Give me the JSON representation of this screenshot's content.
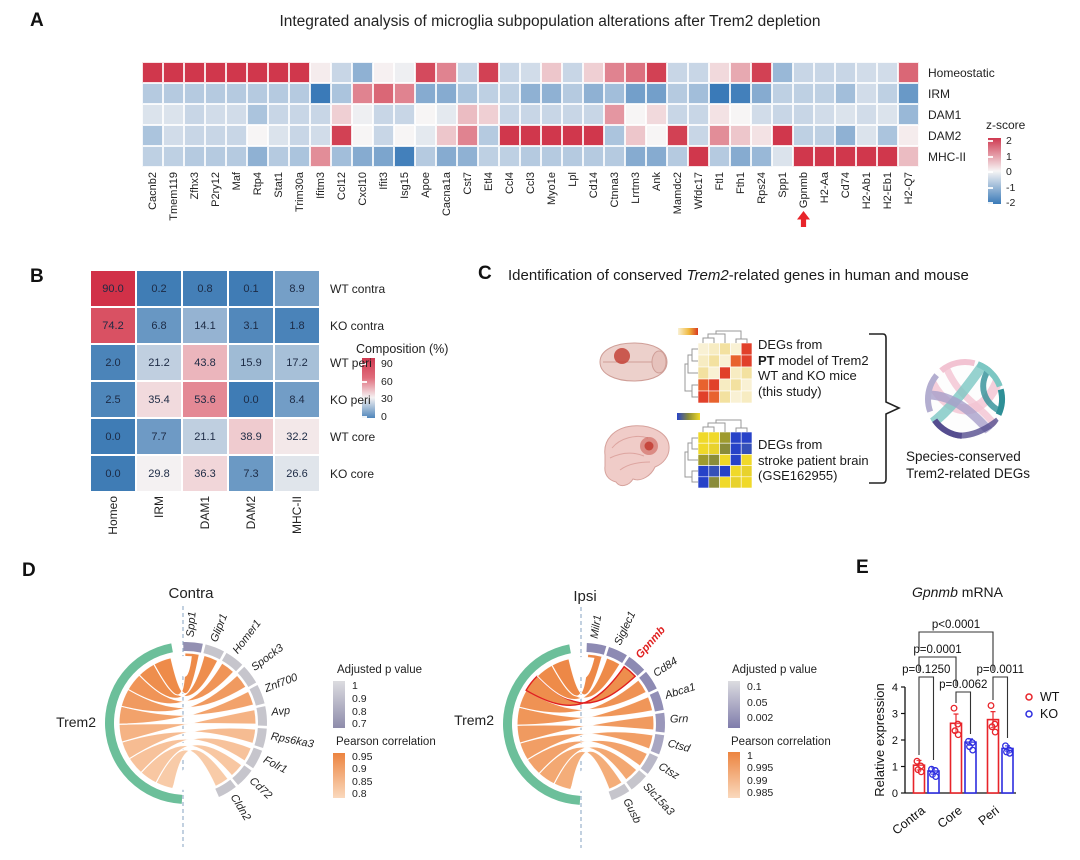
{
  "panel_labels": {
    "a": "A",
    "b": "B",
    "c": "C",
    "d": "D",
    "e": "E"
  },
  "chart_data": [
    {
      "id": "A",
      "type": "heatmap",
      "title": "Integrated analysis of microglia subpopulation alterations after Trem2 depletion",
      "rows": [
        "Homeostatic",
        "IRM",
        "DAM1",
        "DAM2",
        "MHC-II"
      ],
      "categories": [
        "Cacnb2",
        "Tmem119",
        "Zfhx3",
        "P2ry12",
        "Maf",
        "Rtp4",
        "Stat1",
        "Trim30a",
        "Ifitm3",
        "Ccl12",
        "Cxcl10",
        "Ifit3",
        "Isg15",
        "Apoe",
        "Cacna1a",
        "Cst7",
        "Etl4",
        "Ccl4",
        "Ccl3",
        "Myo1e",
        "Lpl",
        "Cd14",
        "Ctnna3",
        "Lrrtm3",
        "Ank",
        "Mamdc2",
        "Wfdc17",
        "Ftl1",
        "Fth1",
        "Rps24",
        "Spp1",
        "Gpnmb",
        "H2-Aa",
        "Cd74",
        "H2-Ab1",
        "H2-Eb1",
        "H2-Q7"
      ],
      "values": [
        [
          2,
          2,
          2,
          2,
          2,
          2,
          2,
          2,
          0.1,
          -0.5,
          -1.1,
          0.05,
          -0.1,
          1.8,
          1.2,
          -0.5,
          1.9,
          -0.5,
          -0.4,
          0.5,
          -0.5,
          0.4,
          1.2,
          1.4,
          1.9,
          -0.5,
          -0.5,
          0.3,
          0.8,
          1.9,
          -1,
          -0.5,
          -0.5,
          -0.5,
          -0.4,
          -0.4,
          1.5
        ],
        [
          -0.7,
          -0.7,
          -0.7,
          -0.7,
          -0.7,
          -0.7,
          -0.7,
          -0.7,
          -2,
          -0.8,
          1.2,
          1.5,
          1.2,
          -1.2,
          -1.2,
          -0.8,
          -0.6,
          -0.6,
          -1.1,
          -1.1,
          -0.7,
          -1.1,
          -0.9,
          -1.4,
          -1.4,
          -0.7,
          -0.9,
          -2,
          -1.9,
          -1.2,
          -0.6,
          -0.6,
          -0.6,
          -0.9,
          -0.4,
          -0.6,
          -1.5
        ],
        [
          -0.3,
          -0.3,
          -0.5,
          -0.4,
          -0.4,
          -0.8,
          -0.5,
          -0.5,
          -0.5,
          0.4,
          -0.1,
          -0.5,
          -0.5,
          0,
          -0.2,
          0.6,
          0.4,
          -0.5,
          -0.5,
          -0.5,
          -0.5,
          -0.5,
          1,
          0,
          0.3,
          -0.5,
          -0.5,
          0.2,
          0,
          -0.4,
          -0.5,
          -0.5,
          -0.4,
          -0.3,
          -0.4,
          -0.3,
          -1
        ],
        [
          -0.8,
          -0.4,
          -0.5,
          -0.5,
          -0.5,
          0,
          -0.3,
          -0.5,
          -0.4,
          1.9,
          0,
          -0.5,
          0,
          -0.2,
          0.5,
          1.2,
          -0.7,
          2,
          2,
          2,
          2,
          2,
          -0.8,
          0.5,
          0,
          1.9,
          -0.5,
          1.1,
          0.5,
          0.2,
          2,
          -0.6,
          -0.6,
          -1.1,
          -0.3,
          -0.8,
          0.1
        ],
        [
          -0.6,
          -0.6,
          -0.7,
          -0.7,
          -0.7,
          -1.1,
          -0.7,
          -0.8,
          1.1,
          -0.9,
          -1.2,
          -1.3,
          -1.9,
          -0.7,
          -1.2,
          -1.1,
          -0.6,
          -0.6,
          -0.7,
          -0.7,
          -0.7,
          -0.7,
          -0.7,
          -1.2,
          -1.2,
          -0.7,
          2,
          -0.7,
          -1.2,
          -1,
          -0.3,
          2,
          2,
          2,
          2,
          2,
          0.6
        ]
      ],
      "legend_title": "z-score",
      "legend_ticks": [
        "2",
        "1",
        "0",
        "-1",
        "-2"
      ],
      "highlighted_gene": "Gpnmb",
      "arrow_color": "#e8242a"
    },
    {
      "id": "B",
      "type": "heatmap",
      "rows": [
        "WT contra",
        "KO contra",
        "WT peri",
        "KO peri",
        "WT core",
        "KO core"
      ],
      "categories": [
        "Homeo",
        "IRM",
        "DAM1",
        "DAM2",
        "MHC-II"
      ],
      "values": [
        [
          "90.0",
          "0.2",
          "0.8",
          "0.1",
          "8.9"
        ],
        [
          "74.2",
          "6.8",
          "14.1",
          "3.1",
          "1.8"
        ],
        [
          "2.0",
          "21.2",
          "43.8",
          "15.9",
          "17.2"
        ],
        [
          "2.5",
          "35.4",
          "53.6",
          "0.0",
          "8.4"
        ],
        [
          "0.0",
          "7.7",
          "21.1",
          "38.9",
          "32.2"
        ],
        [
          "0.0",
          "29.8",
          "36.3",
          "7.3",
          "26.6"
        ]
      ],
      "legend_title": "Composition (%)",
      "legend_ticks": [
        "90",
        "60",
        "30",
        "0"
      ]
    },
    {
      "id": "D-contra",
      "type": "chord",
      "title": "Contra",
      "source": "Trem2",
      "source_arc_color": "#6cbf9a",
      "targets": [
        {
          "gene": "Spp1",
          "seg": "#9390b2",
          "fill": "#ee8b49"
        },
        {
          "gene": "Glipr1",
          "seg": "#c6c5cc",
          "fill": "#ee8e4d"
        },
        {
          "gene": "Homer1",
          "seg": "#c6c5cc",
          "fill": "#f09457"
        },
        {
          "gene": "Spock3",
          "seg": "#c6c5cc",
          "fill": "#f09a60"
        },
        {
          "gene": "Znf700",
          "seg": "#c6c5cc",
          "fill": "#f2a26b"
        },
        {
          "gene": "Avp",
          "seg": "#c6c5cc",
          "fill": "#f5b384"
        },
        {
          "gene": "Rps6ka3",
          "seg": "#c6c5cc",
          "fill": "#f6bc92"
        },
        {
          "gene": "Folr1",
          "seg": "#c6c5cc",
          "fill": "#f7c29b"
        },
        {
          "gene": "Cd72",
          "seg": "#c6c5cc",
          "fill": "#f8c7a2"
        },
        {
          "gene": "Cldn2",
          "seg": "#c6c5cc",
          "fill": "#f8cba8"
        }
      ],
      "legend_p_title": "Adjusted p value",
      "legend_p_ticks": [
        "1",
        "0.9",
        "0.8",
        "0.7"
      ],
      "legend_r_title": "Pearson correlation",
      "legend_r_ticks": [
        "0.95",
        "0.9",
        "0.85",
        "0.8"
      ]
    },
    {
      "id": "D-ipsi",
      "type": "chord",
      "title": "Ipsi",
      "source": "Trem2",
      "source_arc_color": "#6cbf9a",
      "targets": [
        {
          "gene": "Milr1",
          "seg": "#8d8ab3",
          "fill": "#ed8847"
        },
        {
          "gene": "Siglec1",
          "seg": "#8d8ab3",
          "fill": "#ee8b49"
        },
        {
          "gene": "Gpnmb",
          "seg": "#8d8ab3",
          "fill": "#ee8e4d",
          "highlight": "#e02020"
        },
        {
          "gene": "Cd84",
          "seg": "#8d8ab3",
          "fill": "#ef9254"
        },
        {
          "gene": "Abca1",
          "seg": "#918eb6",
          "fill": "#f09659"
        },
        {
          "gene": "Grn",
          "seg": "#9a97bb",
          "fill": "#f09a60"
        },
        {
          "gene": "Ctsd",
          "seg": "#a8a6c2",
          "fill": "#f19e65"
        },
        {
          "gene": "Ctsz",
          "seg": "#b9b8c8",
          "fill": "#f2a26b"
        },
        {
          "gene": "Slc15a3",
          "seg": "#c6c5cc",
          "fill": "#f3a872"
        },
        {
          "gene": "Gusb",
          "seg": "#c6c5cc",
          "fill": "#f4ad79"
        }
      ],
      "legend_p_title": "Adjusted p value",
      "legend_p_ticks": [
        "0.1",
        "0.05",
        "0.002"
      ],
      "legend_r_title": "Pearson correlation",
      "legend_r_ticks": [
        "1",
        "0.995",
        "0.99",
        "0.985"
      ]
    },
    {
      "id": "E",
      "type": "bar",
      "title_italic": "Gpnmb",
      "title_post": " mRNA",
      "ylabel": "Relative expression",
      "ylim": [
        0,
        4
      ],
      "yticks": [
        "0",
        "1",
        "2",
        "3",
        "4"
      ],
      "categories": [
        "Contra",
        "Core",
        "Peri"
      ],
      "series": [
        {
          "name": "WT",
          "color": "#e8242a",
          "values": [
            1.05,
            2.63,
            2.77
          ],
          "points": [
            [
              1.2,
              1.02,
              0.88,
              0.8
            ],
            [
              3.2,
              2.6,
              2.35,
              2.2
            ],
            [
              3.3,
              2.6,
              2.5,
              2.3
            ]
          ],
          "err": [
            0.18,
            0.35,
            0.3
          ]
        },
        {
          "name": "KO",
          "color": "#2d2de0",
          "values": [
            0.83,
            1.92,
            1.68
          ],
          "points": [
            [
              0.9,
              0.85,
              0.7,
              0.62
            ],
            [
              1.95,
              1.9,
              1.75,
              1.62
            ],
            [
              1.78,
              1.62,
              1.55,
              1.5
            ]
          ],
          "err": [
            0.12,
            0.12,
            0.1
          ]
        }
      ],
      "comparisons": [
        {
          "label": "p=0.1250",
          "from": [
            0,
            0
          ],
          "to": [
            0,
            1
          ]
        },
        {
          "label": "p=0.0062",
          "from": [
            1,
            0
          ],
          "to": [
            1,
            1
          ]
        },
        {
          "label": "p=0.0011",
          "from": [
            2,
            0
          ],
          "to": [
            2,
            1
          ]
        },
        {
          "label": "p=0.0001",
          "from": [
            0,
            0
          ],
          "to": [
            1,
            0
          ]
        },
        {
          "label": "p<0.0001",
          "from": [
            0,
            0
          ],
          "to": [
            2,
            0
          ]
        }
      ]
    }
  ],
  "panelC": {
    "title_pre": "Identification of conserved ",
    "title_italic": "Trem2",
    "title_post": "-related genes in human and mouse",
    "box1_line1": "DEGs from",
    "box1_line2_bold": "PT",
    "box1_line2_rest": " model of Trem2",
    "box1_line3": "WT and KO mice",
    "box1_line4": "(this study)",
    "box2_line1": "DEGs from",
    "box2_line2": "stroke patient brain",
    "box2_line3": "(GSE162955)",
    "result_line1": "Species-conserved",
    "result_line2": "Trem2-related DEGs",
    "hm1_colors": [
      [
        "#f9f1d4",
        "#f7ecc2",
        "#f3e1a0",
        "#f9f1d4",
        "#e1402a"
      ],
      [
        "#f7ecc2",
        "#f3e1a0",
        "#f9f1d4",
        "#e8622e",
        "#e1402a"
      ],
      [
        "#f3e1a0",
        "#f9f1d4",
        "#e1402a",
        "#f7ecc2",
        "#f3e1a0"
      ],
      [
        "#e8622e",
        "#e1402a",
        "#f7ecc2",
        "#f3e1a0",
        "#f9f1d4"
      ],
      [
        "#e1402a",
        "#e8622e",
        "#f3e1a0",
        "#f9f1d4",
        "#f7ecc2"
      ]
    ],
    "hm2_colors": [
      [
        "#f0d929",
        "#f0d929",
        "#9f9b2e",
        "#2742c8",
        "#2742c8"
      ],
      [
        "#f0d929",
        "#e8d22c",
        "#8a8c3a",
        "#2742c8",
        "#3550b8"
      ],
      [
        "#9f9b2e",
        "#8a8c3a",
        "#f0d929",
        "#2742c8",
        "#f0d929"
      ],
      [
        "#2742c8",
        "#3550b8",
        "#2742c8",
        "#f0d929",
        "#e8d22c"
      ],
      [
        "#2742c8",
        "#8a8c3a",
        "#f0d929",
        "#e8d22c",
        "#f0d929"
      ]
    ],
    "circle_ribbon_colors": [
      "#f2c3d2",
      "#7cc7c3",
      "#a79fc9",
      "#554d8f",
      "#2e8f96",
      "#b3aed0"
    ]
  }
}
